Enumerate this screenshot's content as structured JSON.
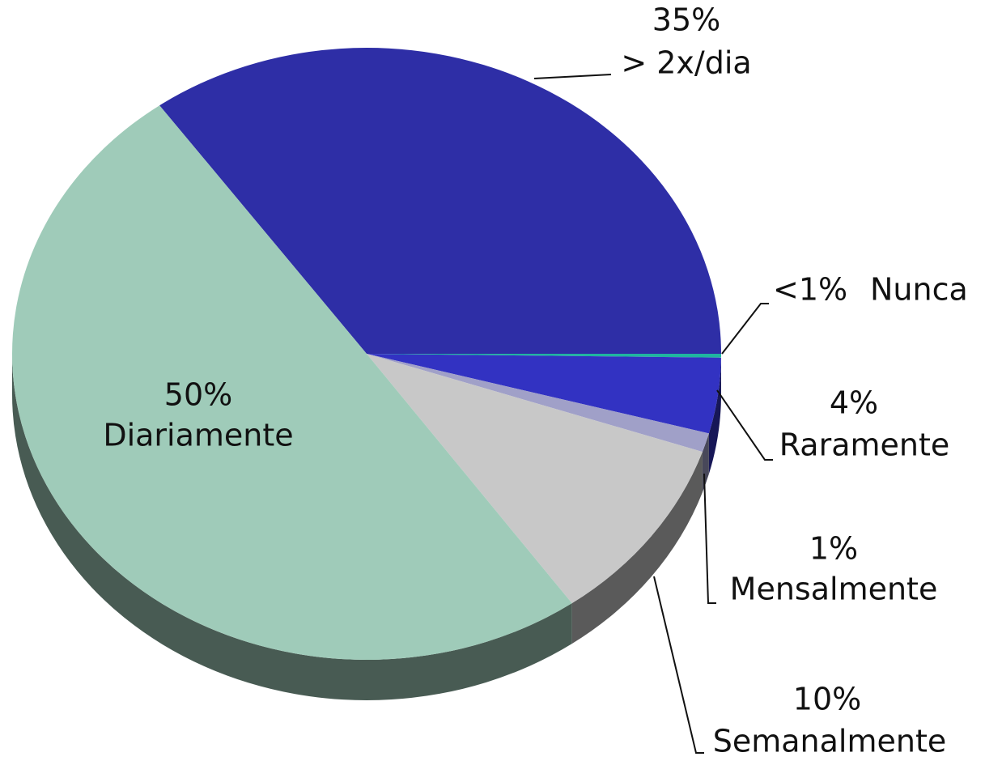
{
  "chart_data": {
    "type": "pie",
    "categories": [
      "> 2x/dia",
      "Nunca",
      "Raramente",
      "Mensalmente",
      "Semanalmente",
      "Diariamente"
    ],
    "values": [
      35,
      0.2,
      4,
      1,
      10,
      50
    ],
    "value_labels": [
      "35%",
      "<1%",
      "4%",
      "1%",
      "10%",
      "50%"
    ],
    "colors": [
      "#2e2ea6",
      "#1fb5a0",
      "#3232c2",
      "#a0a0c8",
      "#c8c8c8",
      "#9fcbb9"
    ],
    "three_d": true
  }
}
